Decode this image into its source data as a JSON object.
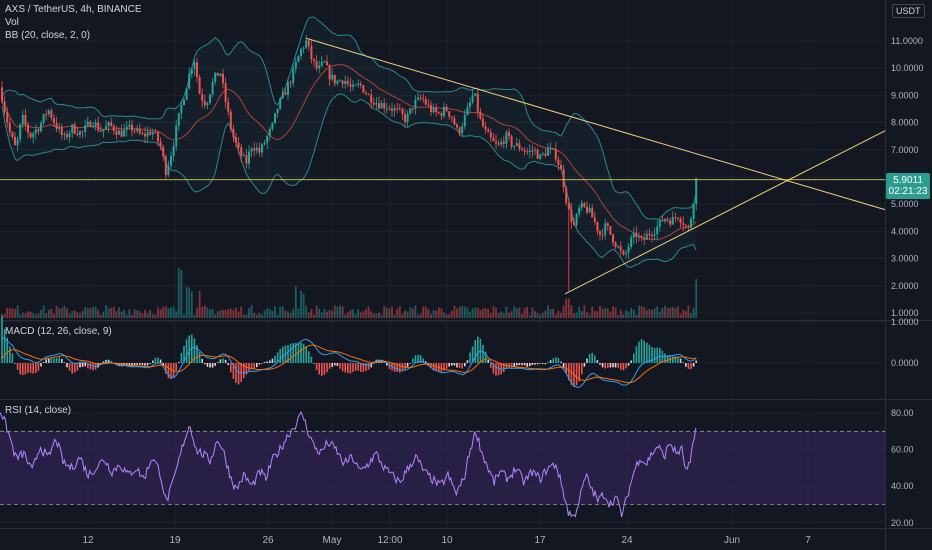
{
  "legends": {
    "main": "AXS / TetherUS, 4h, BINANCE",
    "vol": "Vol",
    "bb": "BB (20, close, 2, 0)",
    "macd": "MACD (12, 26, close, 9)",
    "rsi": "RSI (14, close)"
  },
  "currency_button": "USDT",
  "last_price": {
    "price": "5.9011",
    "countdown": "02:21:23"
  },
  "colors": {
    "background": "#131722",
    "grid": "#1e222d",
    "up": "#26a69a",
    "down": "#ef5350",
    "bb_band": "#2a8a8a",
    "bb_basis": "#b2423f",
    "trendline": "#f0d27a",
    "horizontal_line": "#f0d050",
    "macd": "#26a3f0",
    "signal": "#ff6d00",
    "rsi_line": "#b388ff",
    "rsi_band": "#3a2660"
  },
  "chart_data": [
    {
      "type": "candlestick",
      "title": "AXS / TetherUS, 4h, BINANCE",
      "y_ticks": [
        "11.0000",
        "10.0000",
        "9.0000",
        "8.0000",
        "7.0000",
        "6.0000",
        "5.0000",
        "4.0000",
        "3.0000",
        "2.0000",
        "1.0000"
      ],
      "x_ticks": [
        "12",
        "19",
        "26",
        "May",
        "12:00",
        "10",
        "17",
        "24",
        "Jun",
        "7"
      ],
      "y_range": [
        1,
        11.5
      ],
      "path": [
        [
          0,
          9.3
        ],
        [
          4,
          8.6
        ],
        [
          10,
          7.6
        ],
        [
          16,
          7.0
        ],
        [
          22,
          8.2
        ],
        [
          30,
          7.5
        ],
        [
          40,
          7.9
        ],
        [
          48,
          8.5
        ],
        [
          56,
          7.9
        ],
        [
          64,
          7.4
        ],
        [
          72,
          7.8
        ],
        [
          82,
          7.6
        ],
        [
          92,
          8.1
        ],
        [
          100,
          7.7
        ],
        [
          110,
          7.9
        ],
        [
          120,
          7.6
        ],
        [
          132,
          7.8
        ],
        [
          142,
          7.5
        ],
        [
          152,
          7.7
        ],
        [
          160,
          7.2
        ],
        [
          166,
          6.2
        ],
        [
          172,
          7.0
        ],
        [
          180,
          8.4
        ],
        [
          188,
          9.6
        ],
        [
          194,
          10.4
        ],
        [
          200,
          9.0
        ],
        [
          206,
          8.7
        ],
        [
          214,
          9.6
        ],
        [
          220,
          9.9
        ],
        [
          226,
          8.7
        ],
        [
          232,
          7.6
        ],
        [
          238,
          7.0
        ],
        [
          246,
          6.5
        ],
        [
          252,
          7.2
        ],
        [
          260,
          6.9
        ],
        [
          266,
          7.4
        ],
        [
          272,
          7.8
        ],
        [
          278,
          8.6
        ],
        [
          286,
          9.2
        ],
        [
          292,
          9.7
        ],
        [
          300,
          10.6
        ],
        [
          306,
          11.0
        ],
        [
          312,
          10.3
        ],
        [
          318,
          9.9
        ],
        [
          324,
          10.2
        ],
        [
          330,
          9.7
        ],
        [
          336,
          9.5
        ],
        [
          344,
          9.6
        ],
        [
          352,
          9.2
        ],
        [
          360,
          9.4
        ],
        [
          368,
          9.0
        ],
        [
          378,
          8.7
        ],
        [
          388,
          8.6
        ],
        [
          398,
          8.4
        ],
        [
          406,
          8.1
        ],
        [
          414,
          8.7
        ],
        [
          422,
          8.9
        ],
        [
          430,
          8.5
        ],
        [
          438,
          8.3
        ],
        [
          446,
          8.5
        ],
        [
          452,
          8.2
        ],
        [
          458,
          7.6
        ],
        [
          466,
          8.3
        ],
        [
          474,
          9.1
        ],
        [
          480,
          8.1
        ],
        [
          486,
          7.6
        ],
        [
          492,
          7.3
        ],
        [
          498,
          7.1
        ],
        [
          506,
          7.5
        ],
        [
          512,
          7.2
        ],
        [
          520,
          7.1
        ],
        [
          528,
          6.9
        ],
        [
          534,
          7.0
        ],
        [
          540,
          6.7
        ],
        [
          548,
          7.0
        ],
        [
          556,
          6.8
        ],
        [
          562,
          6.1
        ],
        [
          568,
          4.8
        ],
        [
          574,
          4.2
        ],
        [
          580,
          4.9
        ],
        [
          588,
          4.8
        ],
        [
          594,
          4.4
        ],
        [
          600,
          3.9
        ],
        [
          606,
          4.2
        ],
        [
          612,
          3.8
        ],
        [
          618,
          3.4
        ],
        [
          624,
          3.0
        ],
        [
          630,
          3.6
        ],
        [
          636,
          3.9
        ],
        [
          642,
          3.6
        ],
        [
          648,
          3.9
        ],
        [
          656,
          4.1
        ],
        [
          664,
          4.5
        ],
        [
          672,
          4.4
        ],
        [
          678,
          4.6
        ],
        [
          684,
          4.3
        ],
        [
          688,
          4.0
        ],
        [
          692,
          4.7
        ],
        [
          696,
          5.9
        ]
      ],
      "last_price": 5.9011,
      "horizontal_line": 5.9011,
      "trendlines": [
        {
          "from": {
            "t": 306,
            "price": 11.1
          },
          "to": {
            "t": 885,
            "price": 4.8
          }
        },
        {
          "from": {
            "t": 565,
            "price": 1.7
          },
          "to": {
            "t": 885,
            "price": 7.7
          }
        }
      ]
    },
    {
      "type": "bar",
      "title": "Vol",
      "spikes": [
        [
          180,
          4
        ],
        [
          186,
          2.6
        ],
        [
          190,
          2.2
        ],
        [
          200,
          1.8
        ],
        [
          296,
          2.5
        ],
        [
          302,
          2
        ],
        [
          568,
          1.5
        ],
        [
          696,
          3
        ]
      ]
    },
    {
      "type": "line",
      "title": "MACD (12, 26, close, 9)",
      "y_ticks": [
        "1.0000",
        "0.0000"
      ],
      "y_range": [
        -1.3,
        1.2
      ]
    },
    {
      "type": "line",
      "title": "RSI (14, close)",
      "y_ticks": [
        "80.00",
        "60.00",
        "40.00",
        "20.00"
      ],
      "y_range": [
        17,
        85
      ],
      "band": [
        30,
        70
      ],
      "points": [
        [
          0,
          82
        ],
        [
          8,
          70
        ],
        [
          16,
          55
        ],
        [
          24,
          58
        ],
        [
          32,
          48
        ],
        [
          40,
          62
        ],
        [
          48,
          55
        ],
        [
          56,
          66
        ],
        [
          64,
          52
        ],
        [
          72,
          50
        ],
        [
          80,
          56
        ],
        [
          88,
          46
        ],
        [
          96,
          50
        ],
        [
          104,
          55
        ],
        [
          112,
          48
        ],
        [
          120,
          52
        ],
        [
          128,
          46
        ],
        [
          136,
          50
        ],
        [
          144,
          44
        ],
        [
          152,
          56
        ],
        [
          160,
          48
        ],
        [
          166,
          31
        ],
        [
          172,
          40
        ],
        [
          178,
          52
        ],
        [
          184,
          65
        ],
        [
          190,
          74
        ],
        [
          196,
          60
        ],
        [
          202,
          58
        ],
        [
          210,
          54
        ],
        [
          218,
          66
        ],
        [
          224,
          58
        ],
        [
          230,
          46
        ],
        [
          236,
          38
        ],
        [
          244,
          46
        ],
        [
          252,
          40
        ],
        [
          260,
          48
        ],
        [
          266,
          44
        ],
        [
          272,
          54
        ],
        [
          280,
          60
        ],
        [
          288,
          68
        ],
        [
          296,
          74
        ],
        [
          302,
          80
        ],
        [
          308,
          70
        ],
        [
          314,
          62
        ],
        [
          320,
          58
        ],
        [
          328,
          64
        ],
        [
          336,
          60
        ],
        [
          344,
          52
        ],
        [
          352,
          56
        ],
        [
          360,
          48
        ],
        [
          368,
          52
        ],
        [
          376,
          58
        ],
        [
          384,
          50
        ],
        [
          392,
          46
        ],
        [
          400,
          42
        ],
        [
          408,
          50
        ],
        [
          416,
          56
        ],
        [
          424,
          48
        ],
        [
          432,
          44
        ],
        [
          440,
          40
        ],
        [
          448,
          46
        ],
        [
          456,
          36
        ],
        [
          464,
          44
        ],
        [
          470,
          60
        ],
        [
          476,
          70
        ],
        [
          482,
          58
        ],
        [
          488,
          50
        ],
        [
          494,
          42
        ],
        [
          500,
          48
        ],
        [
          508,
          44
        ],
        [
          516,
          50
        ],
        [
          524,
          42
        ],
        [
          532,
          48
        ],
        [
          540,
          44
        ],
        [
          548,
          50
        ],
        [
          556,
          52
        ],
        [
          562,
          40
        ],
        [
          568,
          26
        ],
        [
          574,
          23
        ],
        [
          580,
          34
        ],
        [
          586,
          46
        ],
        [
          592,
          38
        ],
        [
          598,
          32
        ],
        [
          604,
          36
        ],
        [
          610,
          30
        ],
        [
          616,
          34
        ],
        [
          622,
          24
        ],
        [
          628,
          36
        ],
        [
          634,
          48
        ],
        [
          640,
          56
        ],
        [
          646,
          52
        ],
        [
          652,
          58
        ],
        [
          658,
          62
        ],
        [
          664,
          56
        ],
        [
          670,
          64
        ],
        [
          676,
          58
        ],
        [
          682,
          60
        ],
        [
          686,
          48
        ],
        [
          690,
          52
        ],
        [
          696,
          72
        ]
      ]
    }
  ]
}
